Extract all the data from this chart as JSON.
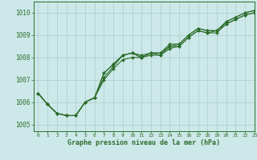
{
  "title": "Graphe pression niveau de la mer (hPa)",
  "bg_color": "#cce8e8",
  "grid_color": "#aacccc",
  "line_color": "#2d6e2d",
  "xlim": [
    -0.5,
    23
  ],
  "ylim": [
    1004.7,
    1010.5
  ],
  "yticks": [
    1005,
    1006,
    1007,
    1008,
    1009,
    1010
  ],
  "xticks": [
    0,
    1,
    2,
    3,
    4,
    5,
    6,
    7,
    8,
    9,
    10,
    11,
    12,
    13,
    14,
    15,
    16,
    17,
    18,
    19,
    20,
    21,
    22,
    23
  ],
  "series": [
    [
      1006.4,
      1005.9,
      1005.5,
      1005.4,
      1005.4,
      1006.0,
      1006.2,
      1007.3,
      1007.7,
      1008.1,
      1008.2,
      1008.1,
      1008.2,
      1008.2,
      1008.6,
      1008.6,
      1009.0,
      1009.3,
      1009.2,
      1009.2,
      1009.6,
      1009.8,
      1010.0,
      1010.1
    ],
    [
      1006.4,
      1005.9,
      1005.5,
      1005.4,
      1005.4,
      1006.0,
      1006.2,
      1007.0,
      1007.5,
      1007.9,
      1008.0,
      1008.0,
      1008.1,
      1008.1,
      1008.4,
      1008.5,
      1008.9,
      1009.2,
      1009.1,
      1009.1,
      1009.5,
      1009.7,
      1009.9,
      1010.0
    ],
    [
      1006.4,
      1005.9,
      1005.5,
      1005.4,
      1005.4,
      1006.0,
      1006.2,
      1007.1,
      1007.6,
      1008.1,
      1008.2,
      1008.0,
      1008.2,
      1008.2,
      1008.5,
      1008.5,
      1008.9,
      1009.2,
      1009.1,
      1009.2,
      1009.5,
      1009.7,
      1009.9,
      1010.0
    ],
    [
      1006.4,
      1005.9,
      1005.5,
      1005.4,
      1005.4,
      1006.0,
      1006.2,
      1007.3,
      1007.7,
      1008.1,
      1008.2,
      1008.0,
      1008.2,
      1008.1,
      1008.5,
      1008.6,
      1009.0,
      1009.3,
      1009.2,
      1009.2,
      1009.6,
      1009.8,
      1010.0,
      1010.1
    ]
  ]
}
